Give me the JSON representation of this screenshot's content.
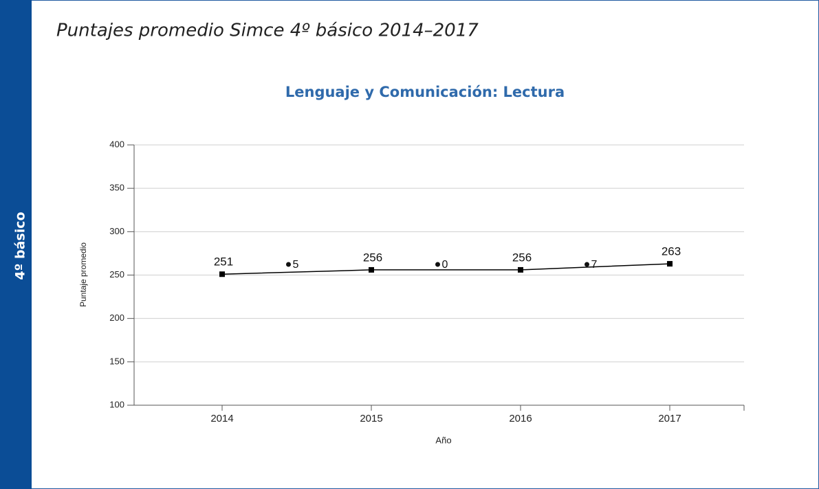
{
  "page": {
    "heading": "Puntajes promedio Simce 4º básico 2014–2017",
    "side_label": "4º básico"
  },
  "chart_data": {
    "type": "line",
    "title": "Lenguaje y Comunicación: Lectura",
    "x_label": "Año",
    "y_label": "Puntaje promedio",
    "categories": [
      "2014",
      "2015",
      "2016",
      "2017"
    ],
    "values": [
      251,
      256,
      256,
      263
    ],
    "color": "#000000",
    "differences": [
      5,
      0,
      7
    ],
    "ylim": [
      100,
      400
    ],
    "yticks": [
      100,
      150,
      200,
      250,
      300,
      350,
      400
    ],
    "grid": true
  }
}
